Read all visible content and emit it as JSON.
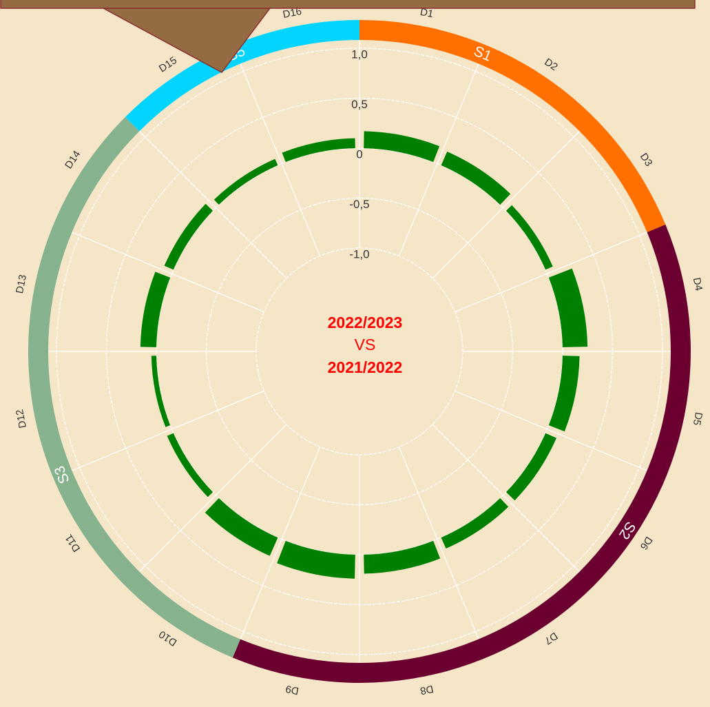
{
  "chart_data": {
    "type": "radial_bar",
    "center_text": [
      "2022/2023",
      "VS",
      "2021/2022"
    ],
    "categories": [
      "D1",
      "D2",
      "D3",
      "D4",
      "D5",
      "D6",
      "D7",
      "D8",
      "D9",
      "D10",
      "D11",
      "D12",
      "D13",
      "D14",
      "D15",
      "D16"
    ],
    "series": [
      {
        "color": "#008000",
        "values": [
          0.17,
          0.15,
          0.08,
          0.25,
          0.17,
          0.12,
          0.12,
          0.19,
          0.24,
          0.2,
          0.07,
          0.05,
          0.16,
          0.1,
          0.07,
          0.1
        ]
      }
    ],
    "groups": [
      {
        "name": "S1",
        "color": "#ff7000",
        "categories": [
          "D1",
          "D2",
          "D3"
        ]
      },
      {
        "name": "S2",
        "color": "#6b0030",
        "categories": [
          "D4",
          "D5",
          "D6",
          "D7",
          "D8",
          "D9"
        ]
      },
      {
        "name": "S3",
        "color": "#86b28e",
        "categories": [
          "D10",
          "D11",
          "D12",
          "D13",
          "D14"
        ]
      },
      {
        "name": "S5",
        "color": "#00d4ff",
        "categories": [
          "D15",
          "D16"
        ]
      }
    ],
    "rlim": [
      -1,
      1
    ],
    "rticks": [
      {
        "value": 1,
        "label": "1,0"
      },
      {
        "value": 0.5,
        "label": "0,5"
      },
      0,
      {
        "value": -0.5,
        "label": "-0,5"
      },
      {
        "value": -1,
        "label": "-1,0"
      }
    ],
    "grid": true
  }
}
